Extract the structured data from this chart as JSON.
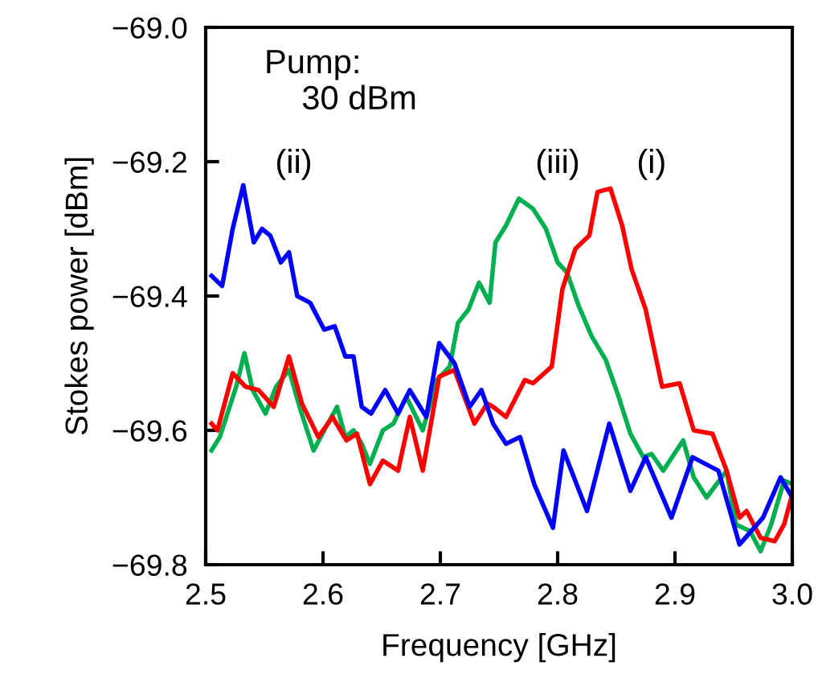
{
  "chart_data": {
    "type": "line",
    "xlabel": "Frequency [GHz]",
    "ylabel": "Stokes power [dBm]",
    "xlim": [
      2.5,
      3.0
    ],
    "xticks": [
      2.5,
      2.6,
      2.7,
      2.8,
      2.9,
      {
        "value": 3.0,
        "label": "3.0"
      }
    ],
    "ylim": [
      -69.8,
      -69.0
    ],
    "yticks": [
      {
        "value": -69.8,
        "label": "−69.8"
      },
      {
        "value": -69.6,
        "label": "−69.6"
      },
      {
        "value": -69.4,
        "label": "−69.4"
      },
      {
        "value": -69.2,
        "label": "−69.2"
      },
      {
        "value": -69.0,
        "label": "−69.0"
      }
    ],
    "grid": false,
    "legend": false,
    "marker": "none",
    "line_style": "solid",
    "annotations": [
      "Pump:\n    30 dBm",
      "(ii)",
      "(iii)",
      "(i)"
    ],
    "series": [
      {
        "color": "#00b050",
        "x": [
          2.505,
          2.512,
          2.526,
          2.533,
          2.54,
          2.551,
          2.56,
          2.571,
          2.58,
          2.592,
          2.601,
          2.612,
          2.619,
          2.626,
          2.633,
          2.64,
          2.651,
          2.66,
          2.671,
          2.685,
          2.697,
          2.708,
          2.715,
          2.724,
          2.733,
          2.742,
          2.747,
          2.756,
          2.767,
          2.779,
          2.79,
          2.8,
          2.808,
          2.818,
          2.829,
          2.841,
          2.852,
          2.862,
          2.873,
          2.88,
          2.89,
          2.907,
          2.916,
          2.927,
          2.944,
          2.952,
          2.964,
          2.973,
          2.982,
          2.993,
          3.0
        ],
        "values": [
          -69.63,
          -69.61,
          -69.535,
          -69.485,
          -69.54,
          -69.575,
          -69.535,
          -69.51,
          -69.565,
          -69.63,
          -69.6,
          -69.565,
          -69.61,
          -69.6,
          -69.62,
          -69.65,
          -69.6,
          -69.59,
          -69.55,
          -69.6,
          -69.525,
          -69.505,
          -69.44,
          -69.42,
          -69.38,
          -69.41,
          -69.32,
          -69.295,
          -69.255,
          -69.27,
          -69.3,
          -69.35,
          -69.365,
          -69.415,
          -69.46,
          -69.495,
          -69.55,
          -69.605,
          -69.64,
          -69.635,
          -69.66,
          -69.615,
          -69.67,
          -69.7,
          -69.66,
          -69.74,
          -69.75,
          -69.78,
          -69.74,
          -69.675,
          -69.68
        ]
      },
      {
        "color": "#ff0000",
        "x": [
          2.505,
          2.51,
          2.523,
          2.534,
          2.545,
          2.558,
          2.571,
          2.582,
          2.596,
          2.608,
          2.62,
          2.629,
          2.64,
          2.651,
          2.664,
          2.674,
          2.685,
          2.691,
          2.699,
          2.712,
          2.729,
          2.74,
          2.745,
          2.756,
          2.772,
          2.779,
          2.795,
          2.804,
          2.815,
          2.827,
          2.834,
          2.845,
          2.855,
          2.863,
          2.875,
          2.889,
          2.904,
          2.916,
          2.932,
          2.944,
          2.955,
          2.961,
          2.973,
          2.985,
          2.993,
          3.0
        ],
        "values": [
          -69.59,
          -69.6,
          -69.515,
          -69.535,
          -69.54,
          -69.565,
          -69.49,
          -69.56,
          -69.61,
          -69.58,
          -69.615,
          -69.605,
          -69.68,
          -69.645,
          -69.66,
          -69.58,
          -69.66,
          -69.6,
          -69.52,
          -69.51,
          -69.59,
          -69.56,
          -69.565,
          -69.58,
          -69.525,
          -69.53,
          -69.505,
          -69.39,
          -69.33,
          -69.31,
          -69.245,
          -69.24,
          -69.295,
          -69.36,
          -69.42,
          -69.535,
          -69.53,
          -69.6,
          -69.605,
          -69.66,
          -69.73,
          -69.72,
          -69.76,
          -69.765,
          -69.74,
          -69.695
        ]
      },
      {
        "color": "#0000ff",
        "x": [
          2.505,
          2.514,
          2.523,
          2.532,
          2.541,
          2.548,
          2.555,
          2.564,
          2.571,
          2.578,
          2.589,
          2.601,
          2.61,
          2.619,
          2.626,
          2.633,
          2.641,
          2.653,
          2.664,
          2.674,
          2.688,
          2.699,
          2.712,
          2.725,
          2.735,
          2.745,
          2.756,
          2.768,
          2.78,
          2.796,
          2.805,
          2.825,
          2.844,
          2.862,
          2.875,
          2.897,
          2.915,
          2.937,
          2.955,
          2.975,
          2.99,
          3.0
        ],
        "values": [
          -69.37,
          -69.385,
          -69.3,
          -69.235,
          -69.32,
          -69.3,
          -69.31,
          -69.35,
          -69.335,
          -69.4,
          -69.41,
          -69.45,
          -69.445,
          -69.49,
          -69.49,
          -69.565,
          -69.575,
          -69.54,
          -69.575,
          -69.54,
          -69.58,
          -69.47,
          -69.5,
          -69.565,
          -69.54,
          -69.59,
          -69.62,
          -69.61,
          -69.68,
          -69.745,
          -69.63,
          -69.72,
          -69.59,
          -69.69,
          -69.64,
          -69.73,
          -69.64,
          -69.66,
          -69.77,
          -69.73,
          -69.67,
          -69.7
        ]
      }
    ]
  }
}
